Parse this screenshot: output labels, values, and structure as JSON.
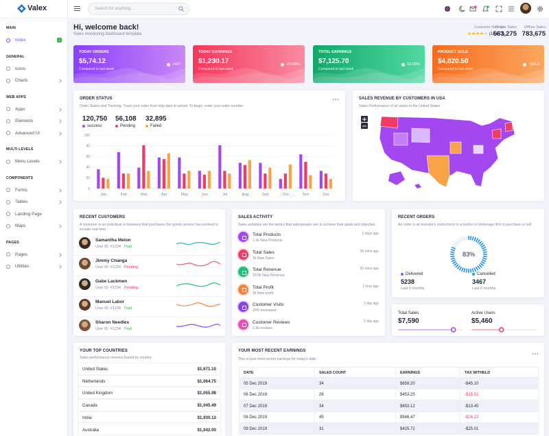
{
  "sidebar": {
    "brand": "Valex",
    "sections": [
      {
        "title": "MAIN",
        "items": [
          {
            "label": "Index",
            "badge": "1",
            "active": true
          }
        ]
      },
      {
        "title": "GENERAL",
        "items": [
          {
            "label": "Icons"
          },
          {
            "label": "Charts",
            "has_submenu": true
          }
        ]
      },
      {
        "title": "WEB APPS",
        "items": [
          {
            "label": "Apps",
            "has_submenu": true
          },
          {
            "label": "Elements",
            "has_submenu": true
          },
          {
            "label": "Advanced UI",
            "has_submenu": true
          }
        ]
      },
      {
        "title": "MULTI LEVELS",
        "items": [
          {
            "label": "Menu Levels",
            "has_submenu": true
          }
        ]
      },
      {
        "title": "COMPONENTS",
        "items": [
          {
            "label": "Forms",
            "has_submenu": true
          },
          {
            "label": "Tables",
            "has_submenu": true
          },
          {
            "label": "Landing Page"
          },
          {
            "label": "Maps",
            "has_submenu": true
          }
        ]
      },
      {
        "title": "PAGES",
        "items": [
          {
            "label": "Pages",
            "has_submenu": true
          },
          {
            "label": "Utilities",
            "has_submenu": true
          }
        ]
      }
    ]
  },
  "header": {
    "search_placeholder": "Search for anything..."
  },
  "welcome": {
    "title": "Hi, welcome back!",
    "subtitle": "Sales monitoring dashboard template."
  },
  "stats": [
    {
      "label": "Customer Ratings",
      "value": "(14,873)"
    },
    {
      "label": "Online Sales",
      "value": "563,275"
    },
    {
      "label": "Offline Sales",
      "value": "783,675"
    }
  ],
  "cards": [
    {
      "title": "TODAY ORDERS",
      "value": "$5,74.12",
      "note": "Compared to last week",
      "change": "+427"
    },
    {
      "title": "TODAY EARNINGS",
      "value": "$1,230.17",
      "note": "Compared to last week",
      "change": "-23.09%"
    },
    {
      "title": "TOTAL EARNINGS",
      "value": "$7,125.70",
      "note": "Compared to last week",
      "change": "52.09%"
    },
    {
      "title": "PRODUCT SOLD",
      "value": "$4,820.50",
      "note": "Compared to last week",
      "change": "-152.3"
    }
  ],
  "order_status": {
    "title": "ORDER STATUS",
    "description": "Order Status and Tracking. Track your order from ship date to arrival. To begin, enter your order number.",
    "totals": [
      "120,750",
      "56,108",
      "32,895"
    ],
    "chart": {
      "type": "bar",
      "categories": [
        "Jan",
        "Feb",
        "Mar",
        "Apr",
        "May",
        "Jun",
        "Jul",
        "Aug",
        "Sep",
        "Oct",
        "Nov",
        "Dec"
      ],
      "series": [
        {
          "name": "success",
          "color": "#a347f0",
          "values": [
            36,
            68,
            39,
            58,
            58,
            33,
            81,
            48,
            48,
            18,
            64,
            33
          ]
        },
        {
          "name": "Pending",
          "color": "#f23a66",
          "values": [
            20,
            28,
            81,
            55,
            28,
            26,
            33,
            44,
            28,
            28,
            50,
            28
          ]
        },
        {
          "name": "Failed",
          "color": "#f8a446",
          "values": [
            18,
            28,
            33,
            66,
            33,
            33,
            28,
            53,
            39,
            45,
            25,
            18
          ]
        }
      ],
      "ylim": [
        0,
        100
      ],
      "yticks": [
        0,
        20,
        40,
        60,
        80,
        100
      ],
      "grid": true
    }
  },
  "map": {
    "title": "SALES REVENUE BY CUSTOMERS IN USA",
    "subtitle": "Sales Performance of all states in the United States"
  },
  "customers": {
    "title": "RECENT CUSTOMERS",
    "description": "A customer is an individual or business that purchases the goods service has evolved to include real-time",
    "rows": [
      {
        "name": "Samantha Melon",
        "user_id": "User ID: #1234",
        "status": "Paid",
        "status_color": "#22c03c",
        "line_color": "#2ab0c8"
      },
      {
        "name": "Jimmy Changa",
        "user_id": "User ID: #1234",
        "status": "Pending",
        "status_color": "#ee335e",
        "line_color": "#f2536f"
      },
      {
        "name": "Gabe Lackmen",
        "user_id": "User ID: #1234",
        "status": "Pending",
        "status_color": "#ee335e",
        "line_color": "#27c17a"
      },
      {
        "name": "Manuel Labor",
        "user_id": "User ID: #1234",
        "status": "Paid",
        "status_color": "#22c03c",
        "line_color": "#f7823b"
      },
      {
        "name": "Sharon Needles",
        "user_id": "User ID: #1234",
        "status": "Paid",
        "status_color": "#22c03c",
        "line_color": "#8c3ff7"
      }
    ]
  },
  "activity": {
    "title": "SALES ACTIVITY",
    "description": "Sales activities are the tactics that salespeople use to achieve their goals and objective",
    "rows": [
      {
        "title": "Total Products",
        "detail": "1.3k New Products",
        "time": "3 days ago",
        "color": "#a347f0"
      },
      {
        "title": "Total Sales",
        "detail": "1k New Sales",
        "time": "55 mins ago",
        "color": "#f23a66"
      },
      {
        "title": "Total Revenue",
        "detail": "23.5k New Revenue",
        "time": "50 mins ago",
        "color": "#22c07a"
      },
      {
        "title": "Total Profit",
        "detail": "3k New profit",
        "time": "1 hour ago",
        "color": "#f7823b"
      },
      {
        "title": "Customer Visits",
        "detail": "15% increased",
        "time": "1 day ago",
        "color": "#8c3ff7"
      },
      {
        "title": "Customer Reviews",
        "detail": "1.5k reviews",
        "time": "1 day ago",
        "color": "#e84fb3"
      }
    ]
  },
  "orders": {
    "title": "RECENT ORDERS",
    "description": "An order is an investor's instructions to a broker or brokerage firm to purchase or sell",
    "progress": {
      "value": 83,
      "label": "83%"
    },
    "items": [
      {
        "label": "Delivered",
        "value": "5238",
        "period": "Last 6 months",
        "color": "#a347f0"
      },
      {
        "label": "Cancelled",
        "value": "3467",
        "period": "Last 6 months",
        "color": "#17a2e6"
      }
    ]
  },
  "totals": [
    {
      "label": "Total Sales",
      "value": "$7,590"
    },
    {
      "label": "Active Users",
      "value": "$5,460"
    }
  ],
  "countries": {
    "title": "YOUR TOP COUNTRIES",
    "description": "Sales performance revenue based by country",
    "rows": [
      [
        "United States",
        "$1,671.10"
      ],
      [
        "Netherlands",
        "$1,064.75"
      ],
      [
        "United Kingdom",
        "$1,055.98"
      ],
      [
        "Canada",
        "$1,045.49"
      ],
      [
        "India",
        "$1,930.12"
      ],
      [
        "Australia",
        "$1,042.00"
      ]
    ]
  },
  "earnings": {
    "title": "YOUR MOST RECENT EARNINGS",
    "description": "This is your most recent earnings for today's date.",
    "columns": [
      "DATE",
      "SALES COUNT",
      "EARNINGS",
      "TAX WITHELD"
    ],
    "rows": [
      [
        "05 Dec 2019",
        "34",
        "$658.20",
        "-$45.10"
      ],
      [
        "06 Dec 2019",
        "26",
        "$453.25",
        "-$15.02"
      ],
      [
        "07 Dec 2019",
        "34",
        "$653.12",
        "-$13.45"
      ],
      [
        "08 Dec 2019",
        "45",
        "$546.47",
        "-$24.22"
      ],
      [
        "09 Dec 2019",
        "31",
        "$425.72",
        "-$25.01"
      ]
    ]
  }
}
